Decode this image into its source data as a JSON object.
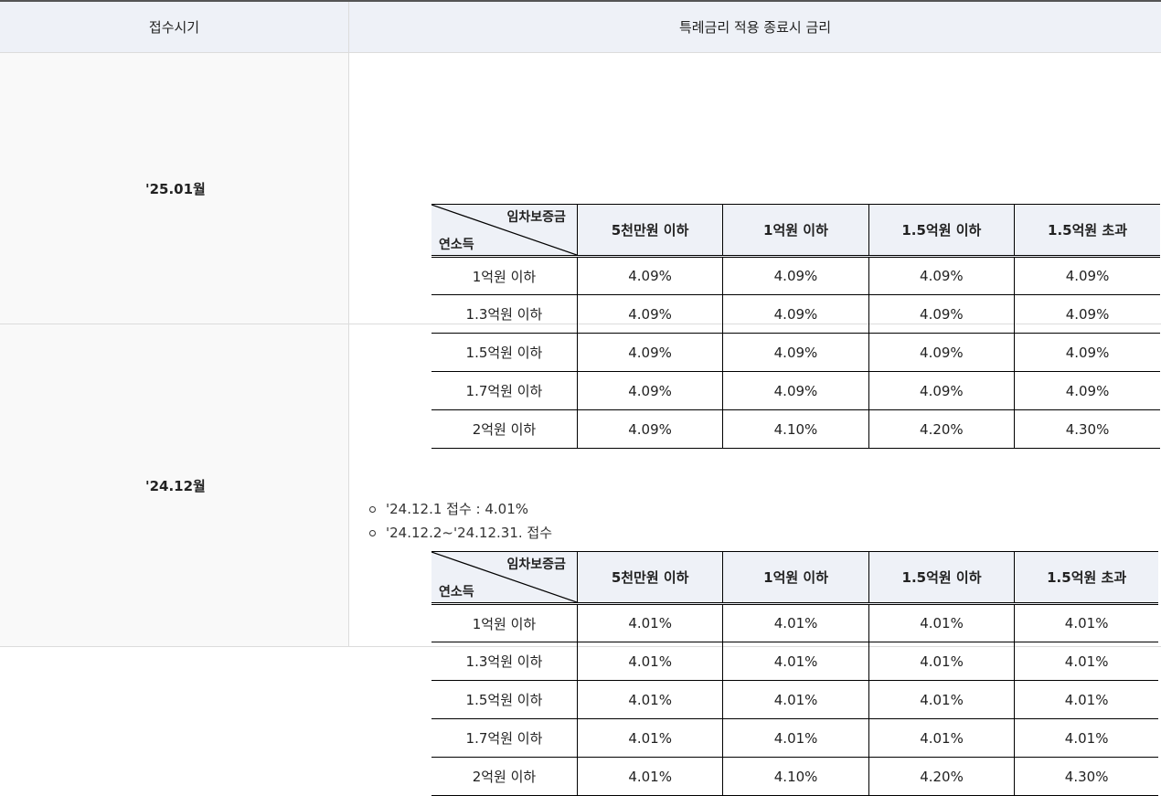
{
  "header": {
    "period_label": "접수시기",
    "rate_label": "특례금리 적용 종료시 금리"
  },
  "sections": [
    {
      "period": "'25.01월",
      "table": {
        "corner_top": "임차보증금",
        "corner_bottom": "연소득",
        "columns": [
          "5천만원 이하",
          "1억원 이하",
          "1.5억원 이하",
          "1.5억원 초과"
        ],
        "rows": [
          {
            "label": "1억원 이하",
            "values": [
              "4.09%",
              "4.09%",
              "4.09%",
              "4.09%"
            ]
          },
          {
            "label": "1.3억원 이하",
            "values": [
              "4.09%",
              "4.09%",
              "4.09%",
              "4.09%"
            ]
          },
          {
            "label": "1.5억원 이하",
            "values": [
              "4.09%",
              "4.09%",
              "4.09%",
              "4.09%"
            ]
          },
          {
            "label": "1.7억원 이하",
            "values": [
              "4.09%",
              "4.09%",
              "4.09%",
              "4.09%"
            ]
          },
          {
            "label": "2억원 이하",
            "values": [
              "4.09%",
              "4.10%",
              "4.20%",
              "4.30%"
            ]
          }
        ]
      }
    },
    {
      "period": "'24.12월",
      "notes": [
        "'24.12.1 접수 : 4.01%",
        "'24.12.2~'24.12.31. 접수"
      ],
      "table": {
        "corner_top": "임차보증금",
        "corner_bottom": "연소득",
        "columns": [
          "5천만원 이하",
          "1억원 이하",
          "1.5억원 이하",
          "1.5억원 초과"
        ],
        "rows": [
          {
            "label": "1억원 이하",
            "values": [
              "4.01%",
              "4.01%",
              "4.01%",
              "4.01%"
            ]
          },
          {
            "label": "1.3억원 이하",
            "values": [
              "4.01%",
              "4.01%",
              "4.01%",
              "4.01%"
            ]
          },
          {
            "label": "1.5억원 이하",
            "values": [
              "4.01%",
              "4.01%",
              "4.01%",
              "4.01%"
            ]
          },
          {
            "label": "1.7억원 이하",
            "values": [
              "4.01%",
              "4.01%",
              "4.01%",
              "4.01%"
            ]
          },
          {
            "label": "2억원 이하",
            "values": [
              "4.01%",
              "4.10%",
              "4.20%",
              "4.30%"
            ]
          }
        ]
      }
    }
  ]
}
